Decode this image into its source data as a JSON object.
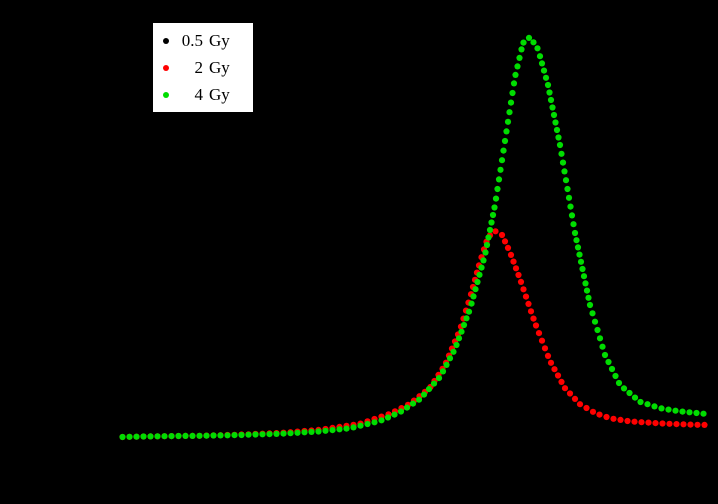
{
  "figure": {
    "background": "#000000"
  },
  "legend": {
    "entries": [
      {
        "value": "0.5",
        "unit": "Gy",
        "color": "#000000",
        "series": "0.5 Gy"
      },
      {
        "value": "2",
        "unit": "Gy",
        "color": "#ff0000",
        "series": "2 Gy"
      },
      {
        "value": "4",
        "unit": "Gy",
        "color": "#00dd00",
        "series": "4 Gy"
      }
    ]
  },
  "chart_data": {
    "type": "scatter",
    "title": "",
    "xlabel": "",
    "ylabel": "",
    "xlim": [
      0,
      620
    ],
    "ylim": [
      0,
      1.05
    ],
    "grid": false,
    "legend_position": "top-left",
    "marker_radius_px": 3.1,
    "dot_spacing_px": 7,
    "note": "x in arbitrary channel units (0-620), y normalized to 4 Gy peak = 1.0; axis labels not visible in source image",
    "series": [
      {
        "name": "0.5 Gy",
        "color": "#000000",
        "points": []
      },
      {
        "name": "2 Gy",
        "color": "#ff0000",
        "points": [
          [
            32,
            0.0
          ],
          [
            70,
            0.002
          ],
          [
            110,
            0.003
          ],
          [
            150,
            0.006
          ],
          [
            190,
            0.01
          ],
          [
            230,
            0.018
          ],
          [
            270,
            0.033
          ],
          [
            300,
            0.058
          ],
          [
            320,
            0.083
          ],
          [
            340,
            0.123
          ],
          [
            355,
            0.18
          ],
          [
            370,
            0.268
          ],
          [
            380,
            0.348
          ],
          [
            390,
            0.438
          ],
          [
            398,
            0.5
          ],
          [
            405,
            0.515
          ],
          [
            412,
            0.505
          ],
          [
            420,
            0.462
          ],
          [
            430,
            0.395
          ],
          [
            445,
            0.285
          ],
          [
            460,
            0.19
          ],
          [
            475,
            0.122
          ],
          [
            490,
            0.082
          ],
          [
            505,
            0.06
          ],
          [
            520,
            0.047
          ],
          [
            540,
            0.039
          ],
          [
            570,
            0.034
          ],
          [
            600,
            0.031
          ],
          [
            620,
            0.03
          ]
        ]
      },
      {
        "name": "4 Gy",
        "color": "#00dd00",
        "points": [
          [
            32,
            0.0
          ],
          [
            70,
            0.002
          ],
          [
            110,
            0.003
          ],
          [
            150,
            0.005
          ],
          [
            190,
            0.008
          ],
          [
            230,
            0.014
          ],
          [
            260,
            0.022
          ],
          [
            290,
            0.04
          ],
          [
            310,
            0.062
          ],
          [
            330,
            0.095
          ],
          [
            350,
            0.15
          ],
          [
            365,
            0.22
          ],
          [
            380,
            0.32
          ],
          [
            395,
            0.455
          ],
          [
            405,
            0.58
          ],
          [
            415,
            0.74
          ],
          [
            425,
            0.9
          ],
          [
            433,
            0.985
          ],
          [
            440,
            1.0
          ],
          [
            448,
            0.97
          ],
          [
            458,
            0.88
          ],
          [
            470,
            0.73
          ],
          [
            485,
            0.51
          ],
          [
            500,
            0.33
          ],
          [
            515,
            0.205
          ],
          [
            530,
            0.13
          ],
          [
            550,
            0.088
          ],
          [
            570,
            0.072
          ],
          [
            590,
            0.064
          ],
          [
            610,
            0.059
          ],
          [
            620,
            0.057
          ]
        ]
      }
    ]
  }
}
